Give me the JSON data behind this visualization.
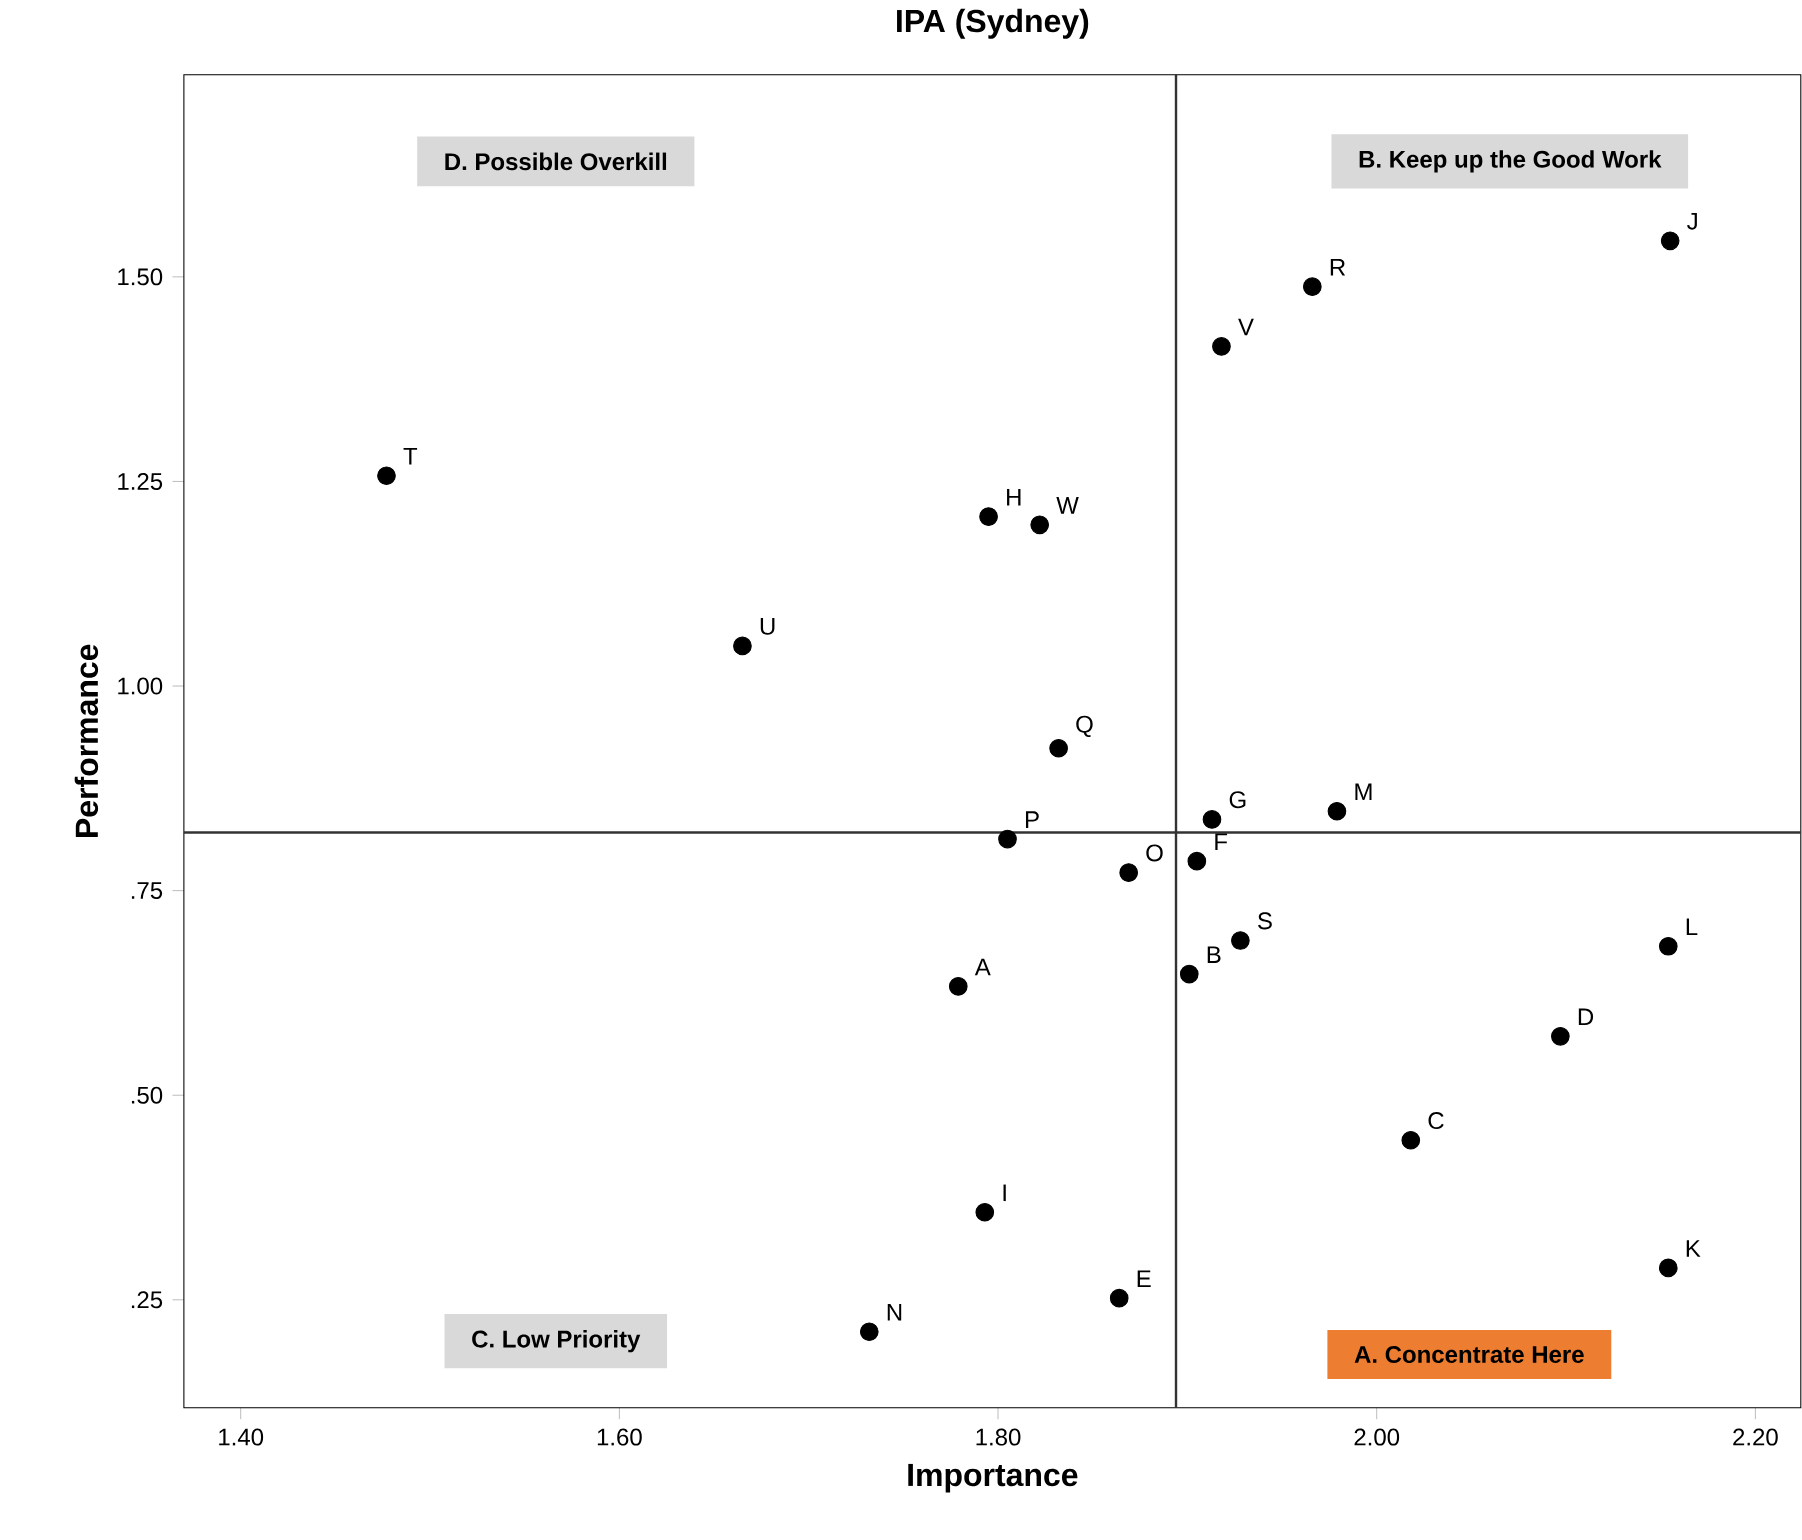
{
  "chart_data": {
    "type": "scatter",
    "title": "IPA (Sydney)",
    "xlabel": "Importance",
    "ylabel": "Performance",
    "xlim": [
      1.37,
      2.224
    ],
    "ylim": [
      0.118,
      1.747
    ],
    "xticks": [
      {
        "value": 1.4,
        "label": "1.40"
      },
      {
        "value": 1.6,
        "label": "1.60"
      },
      {
        "value": 1.8,
        "label": "1.80"
      },
      {
        "value": 2.0,
        "label": "2.00"
      },
      {
        "value": 2.2,
        "label": "2.20"
      }
    ],
    "yticks": [
      {
        "value": 0.25,
        "label": ".25"
      },
      {
        "value": 0.5,
        "label": ".50"
      },
      {
        "value": 0.75,
        "label": ".75"
      },
      {
        "value": 1.0,
        "label": "1.00"
      },
      {
        "value": 1.25,
        "label": "1.25"
      },
      {
        "value": 1.5,
        "label": "1.50"
      }
    ],
    "marker": "circle",
    "series": [
      {
        "color": "#000000",
        "x": [
          1.477,
          1.665,
          1.795,
          1.822,
          1.832,
          1.805,
          1.869,
          1.779,
          1.793,
          1.732,
          1.864,
          1.901,
          1.905,
          1.913,
          1.928,
          1.979,
          1.918,
          1.966,
          2.155,
          2.154,
          2.097,
          2.018,
          2.154
        ],
        "values": [
          1.257,
          1.049,
          1.207,
          1.197,
          0.924,
          0.813,
          0.772,
          0.633,
          0.357,
          0.211,
          0.252,
          0.648,
          0.786,
          0.837,
          0.689,
          0.847,
          1.415,
          1.488,
          1.544,
          0.682,
          0.572,
          0.445,
          0.289
        ]
      }
    ],
    "ref_lines": [
      {
        "axis": "x",
        "value": 1.894,
        "color": "#333333"
      },
      {
        "axis": "y",
        "value": 0.821,
        "color": "#333333"
      }
    ],
    "annotations": [
      "D. Possible  Overkill",
      "B. Keep up the Good Work",
      "C. Low Priority",
      "A. Concentrate Here",
      {
        "text": "T",
        "x": 1.477,
        "y": 1.257
      },
      {
        "text": "U",
        "x": 1.665,
        "y": 1.049
      },
      {
        "text": "H",
        "x": 1.795,
        "y": 1.207
      },
      {
        "text": "W",
        "x": 1.822,
        "y": 1.197
      },
      {
        "text": "Q",
        "x": 1.832,
        "y": 0.924
      },
      {
        "text": "P",
        "x": 1.805,
        "y": 0.813
      },
      {
        "text": "O",
        "x": 1.869,
        "y": 0.772
      },
      {
        "text": "A",
        "x": 1.779,
        "y": 0.633
      },
      {
        "text": "I",
        "x": 1.793,
        "y": 0.357
      },
      {
        "text": "N",
        "x": 1.732,
        "y": 0.211
      },
      {
        "text": "E",
        "x": 1.864,
        "y": 0.252
      },
      {
        "text": "B",
        "x": 1.901,
        "y": 0.648
      },
      {
        "text": "F",
        "x": 1.905,
        "y": 0.786
      },
      {
        "text": "G",
        "x": 1.913,
        "y": 0.837
      },
      {
        "text": "S",
        "x": 1.928,
        "y": 0.689
      },
      {
        "text": "M",
        "x": 1.979,
        "y": 0.847
      },
      {
        "text": "V",
        "x": 1.918,
        "y": 1.415
      },
      {
        "text": "R",
        "x": 1.966,
        "y": 1.488
      },
      {
        "text": "J",
        "x": 2.155,
        "y": 1.544
      },
      {
        "text": "L",
        "x": 2.154,
        "y": 0.682
      },
      {
        "text": "D",
        "x": 2.097,
        "y": 0.572
      },
      {
        "text": "C",
        "x": 2.018,
        "y": 0.445
      },
      {
        "text": "K",
        "x": 2.154,
        "y": 0.289
      }
    ]
  }
}
